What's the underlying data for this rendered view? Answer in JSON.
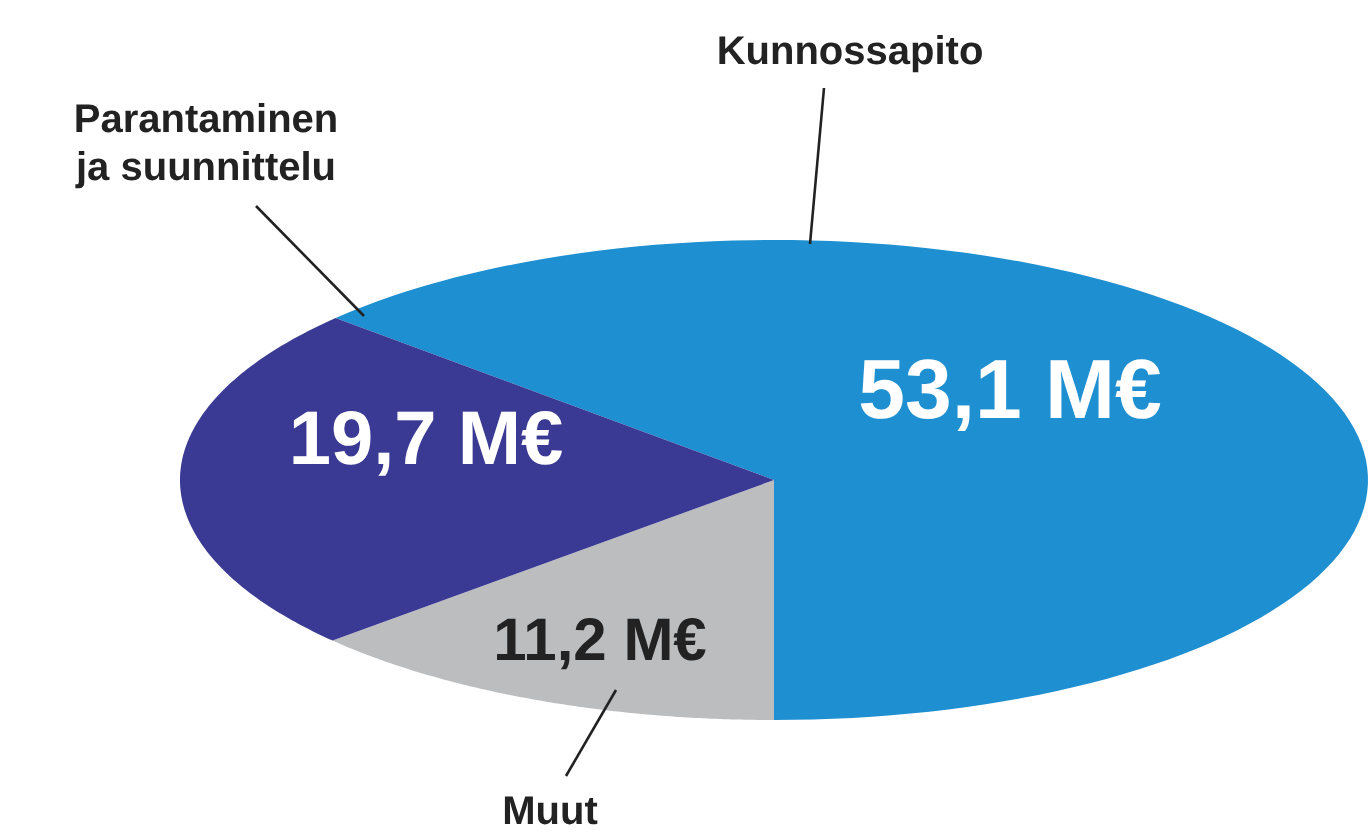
{
  "chart_data": {
    "type": "pie",
    "categories": [
      "Kunnossapito",
      "Muut",
      "Parantaminen ja suunnittelu"
    ],
    "values": [
      53.1,
      11.2,
      19.7
    ],
    "colors": [
      "#1e8fd0",
      "#bcbdbf",
      "#3a3a94"
    ],
    "value_labels": [
      "53,1 M€",
      "11,2 M€",
      "19,7 M€"
    ]
  }
}
